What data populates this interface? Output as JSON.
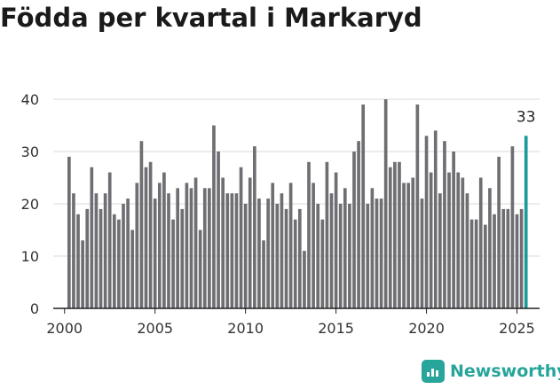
{
  "title": "Födda per kvartal i Markaryd",
  "brand": {
    "name": "Newsworthy",
    "icon": "newsworthy-chart-icon",
    "color": "#27a59a"
  },
  "chart_data": {
    "type": "bar",
    "ylim": [
      0,
      40
    ],
    "yticks": [
      0,
      10,
      20,
      30,
      40
    ],
    "xtick_labels": [
      "2000",
      "2005",
      "2010",
      "2015",
      "2020",
      "2025"
    ],
    "xlim": [
      1999.375,
      2026.25
    ],
    "grid": true,
    "bar_color": "#6e6e73",
    "highlight_color": "#1b9a9a",
    "highlight_label": "33",
    "series": [
      {
        "values": [
          29,
          22,
          18,
          13,
          19,
          27,
          22,
          19,
          22,
          26,
          18,
          17,
          20,
          21,
          15,
          24,
          32,
          27,
          28,
          21,
          24,
          26,
          22,
          17,
          23,
          19,
          24,
          23,
          25,
          15,
          23,
          23,
          35,
          30,
          25,
          22,
          22,
          22,
          27,
          20,
          25,
          31,
          21,
          13,
          21,
          24,
          20,
          22,
          19,
          24,
          17,
          19,
          11,
          28,
          24,
          20,
          17,
          28,
          22,
          26,
          20,
          23,
          20,
          30,
          32,
          39,
          20,
          23,
          21,
          21,
          40,
          27,
          28,
          28,
          24,
          24,
          25,
          39,
          21,
          33,
          26,
          34,
          22,
          32,
          26,
          30,
          26,
          25,
          22,
          17,
          17,
          25,
          16,
          23,
          18,
          29,
          19,
          19,
          31,
          18,
          19,
          33
        ],
        "x": [
          2000.25,
          2000.5,
          2000.75,
          2001,
          2001.25,
          2001.5,
          2001.75,
          2002,
          2002.25,
          2002.5,
          2002.75,
          2003,
          2003.25,
          2003.5,
          2003.75,
          2004,
          2004.25,
          2004.5,
          2004.75,
          2005,
          2005.25,
          2005.5,
          2005.75,
          2006,
          2006.25,
          2006.5,
          2006.75,
          2007,
          2007.25,
          2007.5,
          2007.75,
          2008,
          2008.25,
          2008.5,
          2008.75,
          2009,
          2009.25,
          2009.5,
          2009.75,
          2010,
          2010.25,
          2010.5,
          2010.75,
          2011,
          2011.25,
          2011.5,
          2011.75,
          2012,
          2012.25,
          2012.5,
          2012.75,
          2013,
          2013.25,
          2013.5,
          2013.75,
          2014,
          2014.25,
          2014.5,
          2014.75,
          2015,
          2015.25,
          2015.5,
          2015.75,
          2016,
          2016.25,
          2016.5,
          2016.75,
          2017,
          2017.25,
          2017.5,
          2017.75,
          2018,
          2018.25,
          2018.5,
          2018.75,
          2019,
          2019.25,
          2019.5,
          2019.75,
          2020,
          2020.25,
          2020.5,
          2020.75,
          2021,
          2021.25,
          2021.5,
          2021.75,
          2022,
          2022.25,
          2022.5,
          2022.75,
          2023,
          2023.25,
          2023.5,
          2023.75,
          2024,
          2024.25,
          2024.5,
          2024.75,
          2025,
          2025.25,
          2025.5
        ]
      }
    ]
  }
}
